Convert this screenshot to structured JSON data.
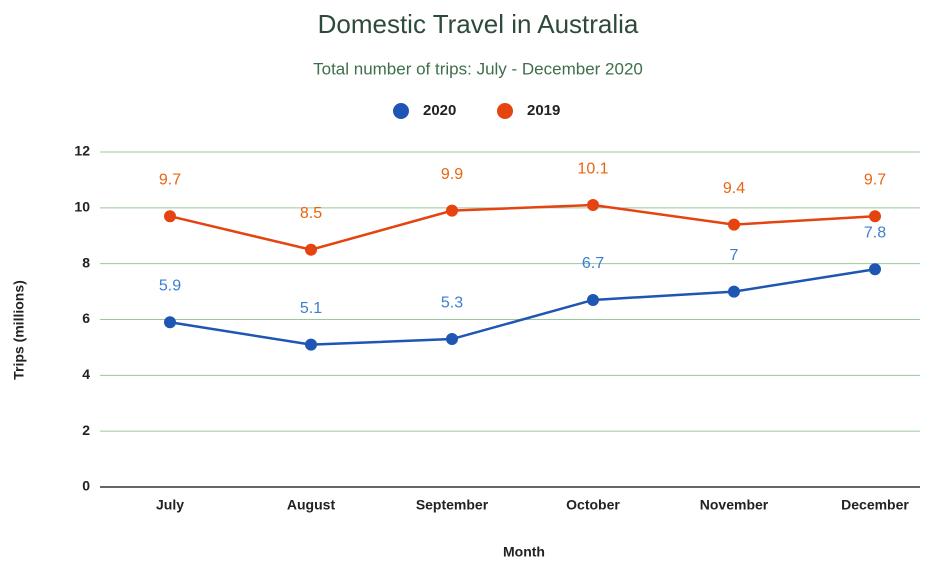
{
  "chart_data": {
    "type": "line",
    "title": "Domestic Travel in Australia",
    "subtitle": "Total number of trips: July - December 2020",
    "x_label": "Month",
    "y_label": "Trips (millions)",
    "categories": [
      "July",
      "August",
      "September",
      "October",
      "November",
      "December"
    ],
    "series": [
      {
        "name": "2020",
        "color": "#1f55b3",
        "label_color": "#3b7fd0",
        "values": [
          5.9,
          5.1,
          5.3,
          6.7,
          7,
          7.8
        ]
      },
      {
        "name": "2019",
        "color": "#e5430f",
        "label_color": "#e8650f",
        "values": [
          9.7,
          8.5,
          9.9,
          10.1,
          9.4,
          9.7
        ]
      }
    ],
    "ylim": [
      0,
      12
    ],
    "yticks": [
      0,
      2,
      4,
      6,
      8,
      10,
      12
    ],
    "grid": true,
    "grid_color": "#9cc79c",
    "legend": "top"
  }
}
